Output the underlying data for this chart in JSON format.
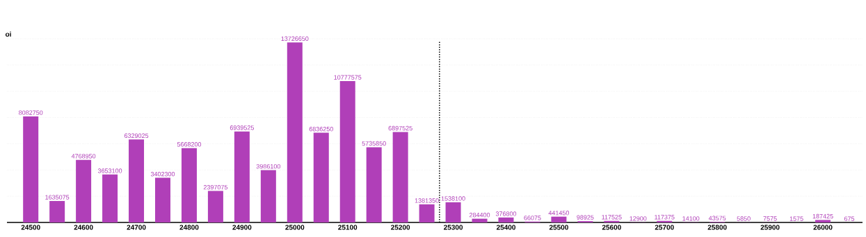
{
  "chart_data": {
    "type": "bar",
    "ylabel": "oi",
    "x": [
      24500,
      24550,
      24600,
      24650,
      24700,
      24750,
      24800,
      24850,
      24900,
      24950,
      25000,
      25050,
      25100,
      25150,
      25200,
      25250,
      25300,
      25350,
      25400,
      25450,
      25500,
      25550,
      25600,
      25650,
      25700,
      25750,
      25800,
      25850,
      25900,
      25950,
      26000,
      26050
    ],
    "values": [
      8082750,
      1635075,
      4768950,
      3653100,
      6329025,
      3402300,
      5668200,
      2397075,
      6939525,
      3986100,
      13726650,
      6836250,
      10777575,
      5735850,
      6897525,
      1381350,
      1538100,
      284400,
      376800,
      66075,
      441450,
      98925,
      117525,
      12900,
      117375,
      14100,
      43575,
      5850,
      7575,
      1575,
      187425,
      675
    ],
    "color": "#b03fb8",
    "xlim": [
      24455,
      26075
    ],
    "xticks": [
      24500,
      24600,
      24700,
      24800,
      24900,
      25000,
      25100,
      25200,
      25300,
      25400,
      25500,
      25600,
      25700,
      25800,
      25900,
      26000
    ],
    "grid": "y",
    "data_labels": true,
    "ref_lines": [
      {
        "axis": "x",
        "value": 25274,
        "line_style": "dotted",
        "color": "#000000"
      }
    ]
  }
}
